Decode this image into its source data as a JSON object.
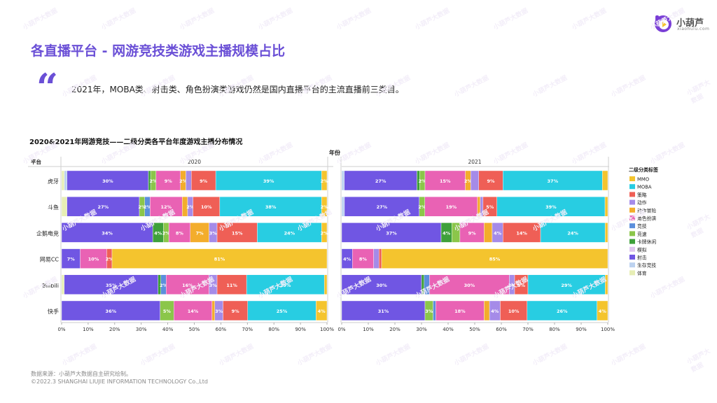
{
  "header": {
    "title": "各直播平台 - 网游竞技类游戏主播规模占比",
    "quote_mark": "“",
    "subtitle": "2021年，MOBA类、射击类、角色扮演类游戏仍然是国内直播平台的主流直播前三类目。"
  },
  "brand": {
    "name": "小葫芦",
    "domain": "xiaohulu.com",
    "accent": "#6a4fd6",
    "watermark": "小葫芦大数据"
  },
  "footer": {
    "source": "数据来源：小葫芦大数据自主研究绘制。",
    "copyright": "©2022.3 SHANGHAI LIUJIE INFORMATION TECHNOLOGY Co.,Ltd"
  },
  "chart_data": {
    "type": "stacked-bar-horizontal",
    "title": "2020&2021年网游竞技——二级分类各平台年度游戏主播分布情况",
    "facet_label": "年份",
    "row_header": "平台",
    "legend_title": "二级分类标签",
    "xlim": [
      0,
      100
    ],
    "x_ticks": [
      "0%",
      "10%",
      "20%",
      "30%",
      "40%",
      "50%",
      "60%",
      "70%",
      "80%",
      "90%",
      "100%"
    ],
    "platforms": [
      "虎牙",
      "斗鱼",
      "企鹅电竞",
      "网易CC",
      "Bilibili",
      "快手"
    ],
    "series": [
      {
        "name": "体育",
        "color": "#e7eeb5"
      },
      {
        "name": "生存竞技",
        "color": "#bcd2f0"
      },
      {
        "name": "射击",
        "color": "#7056e3"
      },
      {
        "name": "模拟",
        "color": "#e0c6ef"
      },
      {
        "name": "卡牌休闲",
        "color": "#3ea03a"
      },
      {
        "name": "竞速",
        "color": "#8bc64a"
      },
      {
        "name": "竞技",
        "color": "#5b8fdc"
      },
      {
        "name": "角色扮演",
        "color": "#e962b4"
      },
      {
        "name": "动作冒险",
        "color": "#f3ad2c"
      },
      {
        "name": "动作",
        "color": "#a58be8"
      },
      {
        "name": "策略",
        "color": "#ef5f56"
      },
      {
        "name": "MOBA",
        "color": "#28cde2"
      },
      {
        "name": "MMO",
        "color": "#f4c42e"
      }
    ],
    "legend_order": [
      "MMO",
      "MOBA",
      "策略",
      "动作",
      "动作冒险",
      "角色扮演",
      "竞技",
      "竞速",
      "卡牌休闲",
      "模拟",
      "射击",
      "生存竞技",
      "体育"
    ],
    "panels": [
      {
        "year": "2020",
        "rows": [
          [
            1,
            1,
            30,
            0,
            0.8,
            2,
            0,
            9,
            2,
            2,
            9,
            39,
            2
          ],
          [
            2,
            0,
            27,
            0,
            0,
            2,
            2,
            12,
            2,
            2,
            10,
            38,
            2
          ],
          [
            0,
            0,
            34,
            0,
            4,
            2,
            0,
            8,
            7,
            3,
            15,
            24,
            2
          ],
          [
            0,
            0,
            7,
            0,
            0,
            0,
            0,
            10,
            0,
            0,
            2,
            0,
            81
          ],
          [
            1,
            0,
            35,
            0,
            1,
            0,
            2,
            16,
            0,
            3,
            11,
            29,
            1
          ],
          [
            0,
            0,
            36,
            0,
            0,
            5,
            0,
            14,
            1,
            3,
            9,
            25,
            4
          ]
        ],
        "labels": [
          [
            "",
            "",
            "30%",
            "",
            "",
            "2%",
            "",
            "9%",
            "2%",
            "",
            "9%",
            "39%",
            "2%"
          ],
          [
            "",
            "",
            "27%",
            "",
            "",
            "2%",
            "2%",
            "12%",
            "",
            "2%",
            "10%",
            "38%",
            "2%"
          ],
          [
            "",
            "",
            "34%",
            "",
            "4%",
            "2%",
            "",
            "8%",
            "7%",
            "3%",
            "15%",
            "24%",
            "2%"
          ],
          [
            "",
            "",
            "7%",
            "",
            "",
            "",
            "",
            "10%",
            "",
            "",
            "2%",
            "",
            "81%"
          ],
          [
            "",
            "",
            "35%",
            "",
            "",
            "",
            "2%",
            "16%",
            "",
            "3%",
            "11%",
            "29%",
            ""
          ],
          [
            "",
            "",
            "36%",
            "",
            "",
            "5%",
            "",
            "14%",
            "",
            "3%",
            "9%",
            "25%",
            "4%"
          ]
        ]
      },
      {
        "year": "2021",
        "rows": [
          [
            0,
            1,
            27,
            0,
            1,
            2,
            0,
            15,
            2,
            3,
            9,
            37,
            2
          ],
          [
            0,
            1,
            27,
            0,
            0,
            2,
            0,
            19,
            1,
            1,
            5,
            39,
            1
          ],
          [
            0,
            0,
            37,
            0,
            4,
            3,
            0,
            9,
            3,
            4,
            14,
            24,
            1
          ],
          [
            0,
            0,
            4,
            0,
            0,
            0,
            0,
            8,
            0,
            2,
            1,
            0,
            85
          ],
          [
            0,
            0,
            30,
            0,
            1,
            0,
            2,
            30,
            0,
            2,
            5,
            29,
            1
          ],
          [
            0,
            0,
            31,
            0,
            0,
            3,
            1,
            18,
            2,
            4,
            10,
            26,
            4
          ]
        ],
        "labels": [
          [
            "",
            "",
            "27%",
            "",
            "",
            "2%",
            "",
            "15%",
            "2%",
            "",
            "9%",
            "37%",
            ""
          ],
          [
            "",
            "",
            "27%",
            "",
            "",
            "2%",
            "",
            "19%",
            "",
            "",
            "5%",
            "39%",
            ""
          ],
          [
            "",
            "",
            "37%",
            "",
            "4%",
            "",
            "",
            "9%",
            "",
            "4%",
            "14%",
            "24%",
            ""
          ],
          [
            "",
            "",
            "4%",
            "",
            "",
            "",
            "",
            "8%",
            "",
            "",
            "",
            "",
            "85%"
          ],
          [
            "",
            "",
            "30%",
            "",
            "",
            "",
            "",
            "30%",
            "",
            "2%",
            "5%",
            "29%",
            ""
          ],
          [
            "",
            "",
            "31%",
            "",
            "",
            "3%",
            "",
            "18%",
            "",
            "4%",
            "10%",
            "26%",
            "4%"
          ]
        ]
      }
    ]
  }
}
